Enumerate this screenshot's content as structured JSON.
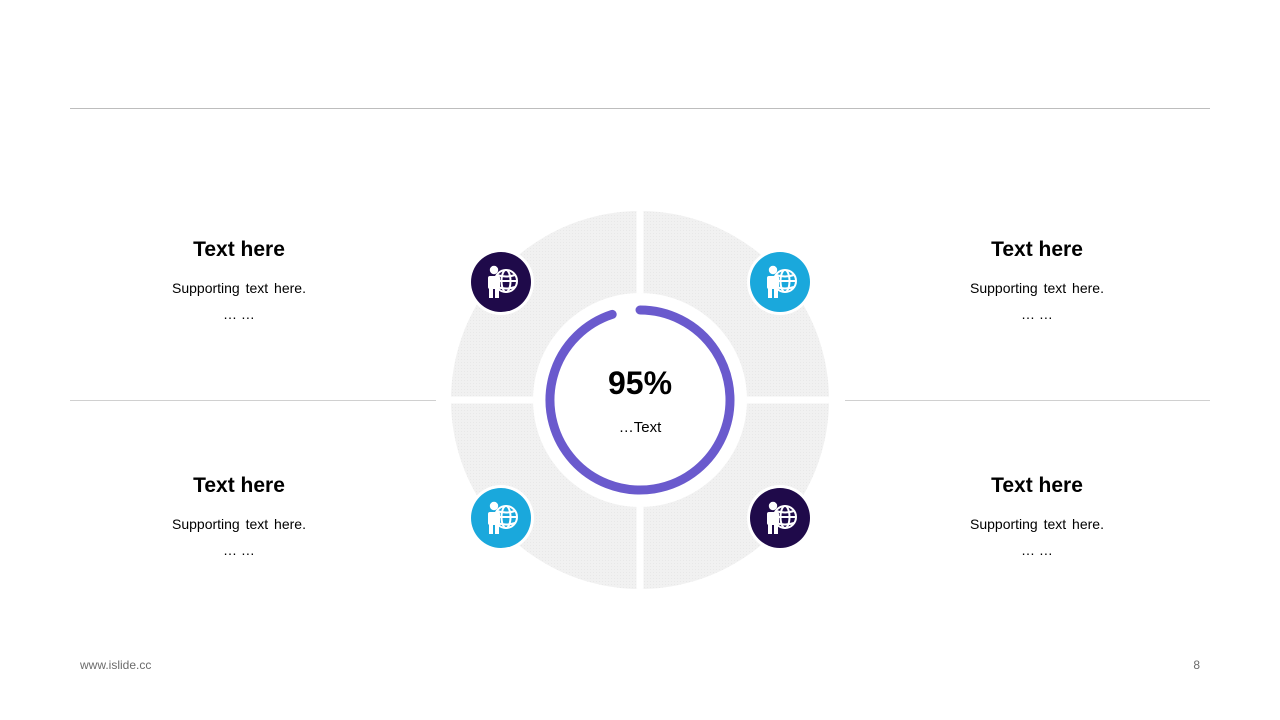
{
  "center": {
    "value": "95%",
    "label": "…Text",
    "progress": 0.95
  },
  "colors": {
    "dark_purple": "#1f0a4a",
    "cyan": "#1aa8dc",
    "ring": "#6a5acd",
    "segment": "#efefef"
  },
  "blocks": [
    {
      "id": "tl",
      "title": "Text here",
      "support": "Supporting text here.",
      "ellipsis": "… …",
      "icon": "person-globe-icon",
      "icon_color": "#1f0a4a"
    },
    {
      "id": "tr",
      "title": "Text here",
      "support": "Supporting text here.",
      "ellipsis": "… …",
      "icon": "person-globe-icon",
      "icon_color": "#1aa8dc"
    },
    {
      "id": "bl",
      "title": "Text here",
      "support": "Supporting text here.",
      "ellipsis": "… …",
      "icon": "person-globe-icon",
      "icon_color": "#1aa8dc"
    },
    {
      "id": "br",
      "title": "Text here",
      "support": "Supporting text here.",
      "ellipsis": "… …",
      "icon": "person-globe-icon",
      "icon_color": "#1f0a4a"
    }
  ],
  "footer": {
    "url": "www.islide.cc",
    "page": "8"
  }
}
